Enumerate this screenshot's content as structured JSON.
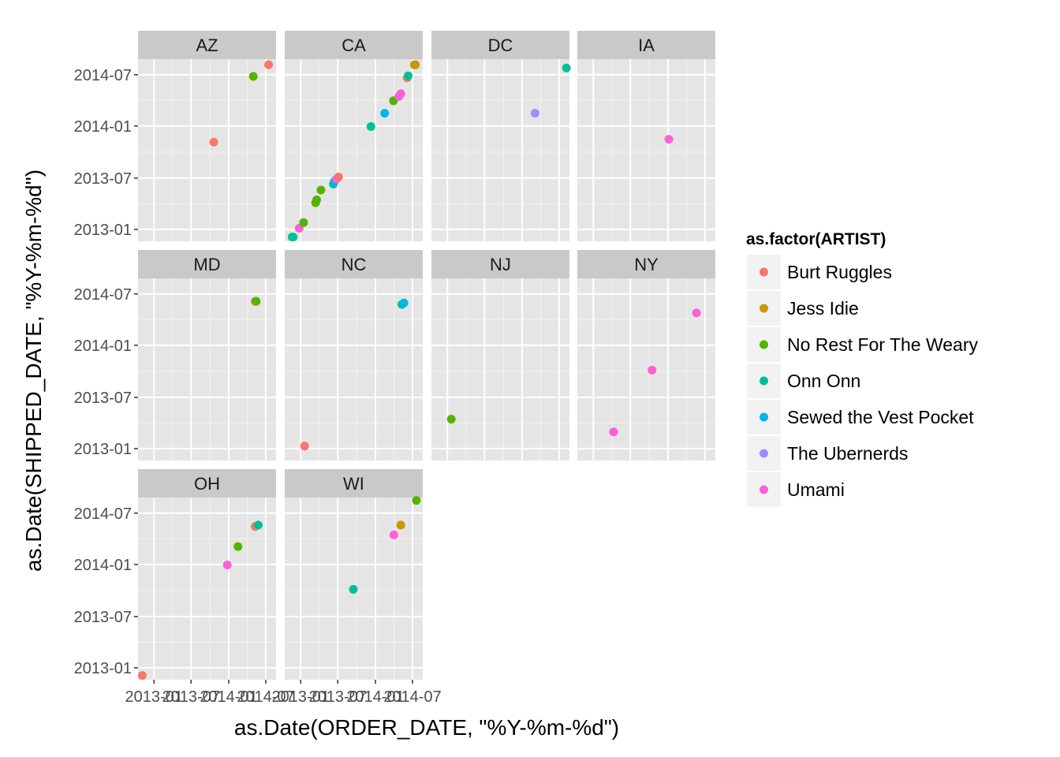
{
  "chart_data": {
    "type": "scatter",
    "facet_by": "state",
    "xlabel": "as.Date(ORDER_DATE, \"%Y-%m-%d\")",
    "ylabel": "as.Date(SHIPPED_DATE, \"%Y-%m-%d\")",
    "x_ticks": [
      "2013-01",
      "2013-07",
      "2014-01",
      "2014-07"
    ],
    "y_ticks": [
      "2013-01",
      "2013-07",
      "2014-01",
      "2014-07"
    ],
    "xlim": [
      "2012-10-15",
      "2014-08-20"
    ],
    "ylim": [
      "2012-11-20",
      "2014-08-25"
    ],
    "grid": true,
    "legend_position": "right",
    "legend": {
      "title": "as.factor(ARTIST)",
      "entries": [
        {
          "name": "Burt Ruggles",
          "color": "#F8766D"
        },
        {
          "name": "Jess Idie",
          "color": "#C49A00"
        },
        {
          "name": "No Rest For The Weary",
          "color": "#53B400"
        },
        {
          "name": "Onn Onn",
          "color": "#00C094"
        },
        {
          "name": "Sewed the Vest Pocket",
          "color": "#00B6EB"
        },
        {
          "name": "The Ubernerds",
          "color": "#A58AFF"
        },
        {
          "name": "Umami",
          "color": "#FB61D7"
        }
      ]
    },
    "facets": [
      {
        "label": "AZ",
        "points": [
          {
            "x": "2014-05-01",
            "y": "2014-06-25",
            "artist": "No Rest For The Weary"
          },
          {
            "x": "2014-07-15",
            "y": "2014-08-05",
            "artist": "Burt Ruggles"
          },
          {
            "x": "2013-10-20",
            "y": "2013-11-05",
            "artist": "Burt Ruggles"
          }
        ]
      },
      {
        "label": "CA",
        "points": [
          {
            "x": "2012-11-20",
            "y": "2012-12-05",
            "artist": "Onn Onn"
          },
          {
            "x": "2012-11-25",
            "y": "2012-12-05",
            "artist": "Onn Onn"
          },
          {
            "x": "2012-12-25",
            "y": "2013-01-05",
            "artist": "Umami"
          },
          {
            "x": "2013-01-15",
            "y": "2013-01-25",
            "artist": "No Rest For The Weary"
          },
          {
            "x": "2013-03-15",
            "y": "2013-04-05",
            "artist": "No Rest For The Weary"
          },
          {
            "x": "2013-03-20",
            "y": "2013-04-15",
            "artist": "No Rest For The Weary"
          },
          {
            "x": "2013-04-10",
            "y": "2013-05-20",
            "artist": "No Rest For The Weary"
          },
          {
            "x": "2013-06-10",
            "y": "2013-06-10",
            "artist": "Onn Onn"
          },
          {
            "x": "2013-06-15",
            "y": "2013-06-20",
            "artist": "Sewed the Vest Pocket"
          },
          {
            "x": "2013-06-25",
            "y": "2013-06-28",
            "artist": "Umami"
          },
          {
            "x": "2013-07-05",
            "y": "2013-07-05",
            "artist": "Burt Ruggles"
          },
          {
            "x": "2013-12-10",
            "y": "2013-12-30",
            "artist": "Onn Onn"
          },
          {
            "x": "2014-02-15",
            "y": "2014-02-15",
            "artist": "Sewed the Vest Pocket"
          },
          {
            "x": "2014-03-30",
            "y": "2014-03-31",
            "artist": "No Rest For The Weary"
          },
          {
            "x": "2014-04-25",
            "y": "2014-04-15",
            "artist": "Umami"
          },
          {
            "x": "2014-05-05",
            "y": "2014-04-25",
            "artist": "Umami"
          },
          {
            "x": "2014-06-05",
            "y": "2014-06-20",
            "artist": "Burt Ruggles"
          },
          {
            "x": "2014-06-10",
            "y": "2014-06-27",
            "artist": "Onn Onn"
          },
          {
            "x": "2014-07-10",
            "y": "2014-08-05",
            "artist": "Jess Idie"
          },
          {
            "x": "2014-07-15",
            "y": "2014-08-05",
            "artist": "Jess Idie"
          }
        ]
      },
      {
        "label": "DC",
        "points": [
          {
            "x": "2014-03-05",
            "y": "2014-02-15",
            "artist": "The Ubernerds"
          },
          {
            "x": "2014-08-05",
            "y": "2014-07-25",
            "artist": "Onn Onn"
          }
        ]
      },
      {
        "label": "IA",
        "points": [
          {
            "x": "2014-01-05",
            "y": "2013-11-15",
            "artist": "Umami"
          }
        ]
      },
      {
        "label": "MD",
        "points": [
          {
            "x": "2014-05-10",
            "y": "2014-06-05",
            "artist": "Burt Ruggles"
          },
          {
            "x": "2014-05-15",
            "y": "2014-06-05",
            "artist": "No Rest For The Weary"
          }
        ]
      },
      {
        "label": "NC",
        "points": [
          {
            "x": "2013-01-20",
            "y": "2013-01-10",
            "artist": "Burt Ruggles"
          },
          {
            "x": "2014-05-10",
            "y": "2014-05-25",
            "artist": "Onn Onn"
          },
          {
            "x": "2014-05-20",
            "y": "2014-05-30",
            "artist": "Sewed the Vest Pocket"
          }
        ]
      },
      {
        "label": "NJ",
        "points": [
          {
            "x": "2013-01-20",
            "y": "2013-04-15",
            "artist": "No Rest For The Weary"
          }
        ]
      },
      {
        "label": "NY",
        "points": [
          {
            "x": "2013-04-10",
            "y": "2013-03-01",
            "artist": "Umami"
          },
          {
            "x": "2013-10-15",
            "y": "2013-10-05",
            "artist": "Umami"
          },
          {
            "x": "2014-05-20",
            "y": "2014-04-25",
            "artist": "Umami"
          }
        ]
      },
      {
        "label": "OH",
        "points": [
          {
            "x": "2012-11-05",
            "y": "2012-12-05",
            "artist": "Burt Ruggles"
          },
          {
            "x": "2013-12-25",
            "y": "2013-12-30",
            "artist": "Umami"
          },
          {
            "x": "2014-02-15",
            "y": "2014-03-05",
            "artist": "No Rest For The Weary"
          },
          {
            "x": "2014-05-10",
            "y": "2014-05-15",
            "artist": "Burt Ruggles"
          },
          {
            "x": "2014-05-25",
            "y": "2014-05-20",
            "artist": "Onn Onn"
          }
        ]
      },
      {
        "label": "WI",
        "points": [
          {
            "x": "2013-09-15",
            "y": "2013-10-05",
            "artist": "Onn Onn"
          },
          {
            "x": "2014-04-01",
            "y": "2014-04-15",
            "artist": "Umami"
          },
          {
            "x": "2014-05-05",
            "y": "2014-05-20",
            "artist": "Jess Idie"
          },
          {
            "x": "2014-07-20",
            "y": "2014-08-15",
            "artist": "No Rest For The Weary"
          }
        ]
      }
    ]
  }
}
